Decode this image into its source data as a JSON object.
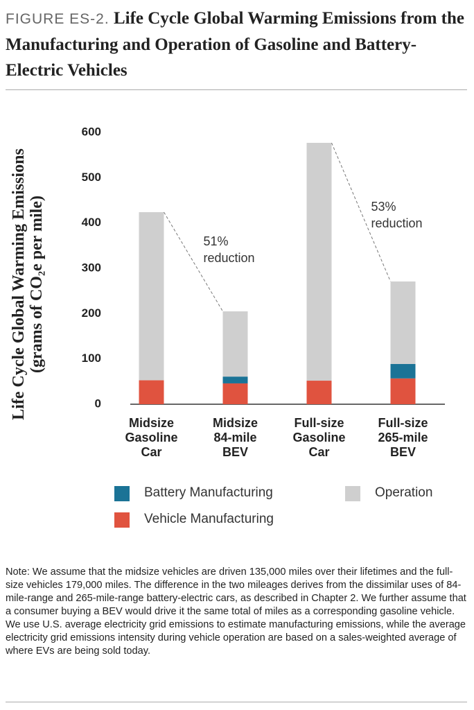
{
  "chart_data": {
    "type": "stacked_bar",
    "figure_label": "FIGURE ES-2.",
    "title": "Life Cycle Global Warming Emissions from the Manufacturing and Operation of Gasoline and Battery-Electric Vehicles",
    "y_label": "Life Cycle Global Warming Emissions",
    "y_label_2": "(grams of CO₂e per mile)",
    "categories": [
      "Midsize\nGasoline\nCar",
      "Midsize\n84-mile\nBEV",
      "Full-size\nGasoline\nCar",
      "Full-size\n265-mile\nBEV"
    ],
    "series": [
      {
        "name": "Vehicle Manufacturing",
        "color": "#e0533f",
        "values": [
          53,
          46,
          52,
          57
        ]
      },
      {
        "name": "Battery Manufacturing",
        "color": "#1b7396",
        "values": [
          0,
          15,
          0,
          32
        ]
      },
      {
        "name": "Operation",
        "color": "#cfcfcf",
        "values": [
          371,
          144,
          525,
          182
        ]
      }
    ],
    "ylim": [
      0,
      600
    ],
    "yticks": [
      0,
      100,
      200,
      300,
      400,
      500,
      600
    ],
    "annotations": [
      "51%\nreduction",
      "53%\nreduction"
    ],
    "note": "Note: We assume that the midsize vehicles are driven 135,000 miles over their lifetimes and the full-size vehicles 179,000 miles. The difference in the two mileages derives from the dissimilar uses of 84-mile-range and 265-mile-range battery-electric cars, as described in Chapter 2. We further assume that a consumer buying a BEV would drive it the same total of miles as a corresponding gasoline vehicle. We use U.S. average electricity grid emissions to estimate manufacturing emissions, while the average electricity grid emissions intensity during vehicle operation are based on a sales-weighted average of where EVs are being sold today."
  }
}
